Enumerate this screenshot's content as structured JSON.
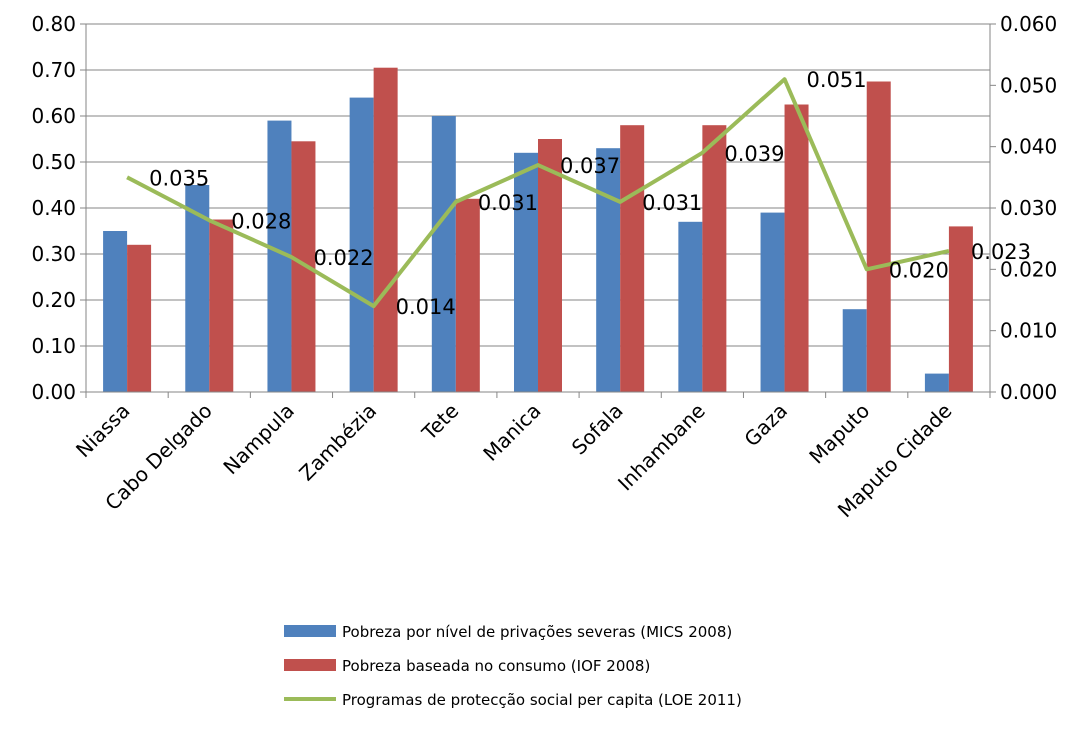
{
  "chart_data": {
    "type": "bar",
    "categories": [
      "Niassa",
      "Cabo Delgado",
      "Nampula",
      "Zambézia",
      "Tete",
      "Manica",
      "Sofala",
      "Inhambane",
      "Gaza",
      "Maputo",
      "Maputo Cidade"
    ],
    "series": [
      {
        "name": "Pobreza por nível de privações severas (MICS 2008)",
        "type": "bar",
        "axis": "left",
        "color": "#4F81BD",
        "values": [
          0.35,
          0.45,
          0.59,
          0.64,
          0.6,
          0.52,
          0.53,
          0.37,
          0.39,
          0.18,
          0.04
        ]
      },
      {
        "name": "Pobreza baseada no consumo (IOF 2008)",
        "type": "bar",
        "axis": "left",
        "color": "#C0504D",
        "values": [
          0.32,
          0.375,
          0.545,
          0.705,
          0.42,
          0.55,
          0.58,
          0.58,
          0.625,
          0.675,
          0.36
        ]
      },
      {
        "name": "Programas de protecção social per capita (LOE 2011)",
        "type": "line",
        "axis": "right",
        "color": "#9BBB59",
        "values": [
          0.035,
          0.028,
          0.022,
          0.014,
          0.031,
          0.037,
          0.031,
          0.039,
          0.051,
          0.02,
          0.023
        ],
        "labels": [
          "0.035",
          "0.028",
          "0.022",
          "0.014",
          "0.031",
          "0.037",
          "0.031",
          "0.039",
          "0.051",
          "0.020",
          "0.023"
        ]
      }
    ],
    "ylim_left": [
      0,
      0.8
    ],
    "ylim_right": [
      0,
      0.06
    ],
    "yticks_left": [
      "0.00",
      "0.10",
      "0.20",
      "0.30",
      "0.40",
      "0.50",
      "0.60",
      "0.70",
      "0.80"
    ],
    "yticks_right": [
      "0.000",
      "0.010",
      "0.020",
      "0.030",
      "0.040",
      "0.050",
      "0.060"
    ],
    "grid": "horizontal",
    "legend_position": "bottom"
  }
}
